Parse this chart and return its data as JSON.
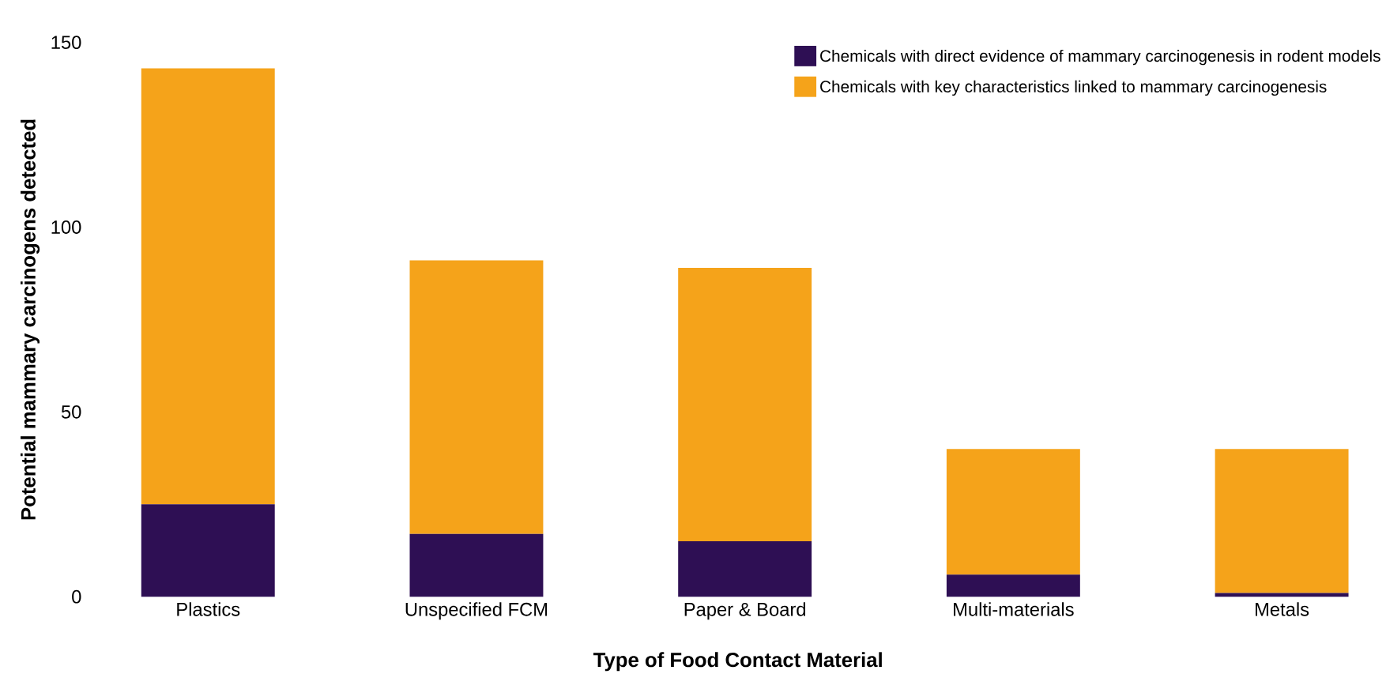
{
  "chart_data": {
    "type": "bar",
    "stacked": true,
    "xlabel": "Type of Food Contact Material",
    "ylabel": "Potential mammary carcinogens detected",
    "categories": [
      "Plastics",
      "Unspecified FCM",
      "Paper & Board",
      "Multi-materials",
      "Metals"
    ],
    "series": [
      {
        "name": "Chemicals with direct evidence of mammary carcinogenesis in rodent models",
        "color": "#2e0f54",
        "values": [
          25,
          17,
          15,
          6,
          1
        ]
      },
      {
        "name": "Chemicals with key characteristics linked to mammary carcinogenesis",
        "color": "#f5a31a",
        "values": [
          118,
          74,
          74,
          34,
          39
        ]
      }
    ],
    "ylim": [
      0,
      150
    ],
    "yticks": [
      0,
      50,
      100,
      150
    ],
    "grid": false,
    "legend": "top right"
  }
}
